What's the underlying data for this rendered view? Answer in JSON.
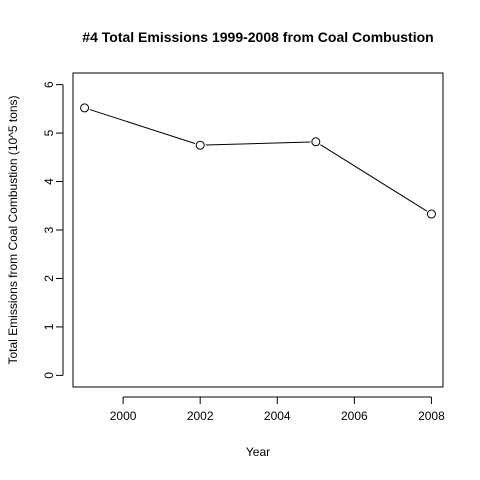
{
  "chart_data": {
    "type": "line",
    "title": "#4 Total Emissions 1999-2008 from Coal Combustion",
    "xlabel": "Year",
    "ylabel": "Total Emissions from Coal Combustion (10^5 tons)",
    "x": [
      1999,
      2002,
      2005,
      2008
    ],
    "series": [
      {
        "values": [
          5.52,
          4.75,
          4.82,
          3.33
        ]
      }
    ],
    "xlim": [
      1998.7,
      2008.3
    ],
    "ylim": [
      -0.24,
      6.24
    ],
    "xticks": [
      2000,
      2002,
      2004,
      2006,
      2008
    ],
    "yticks": [
      0,
      1,
      2,
      3,
      4,
      5,
      6
    ],
    "marker": "open-circle",
    "grid": false,
    "line_color": "#000000"
  }
}
